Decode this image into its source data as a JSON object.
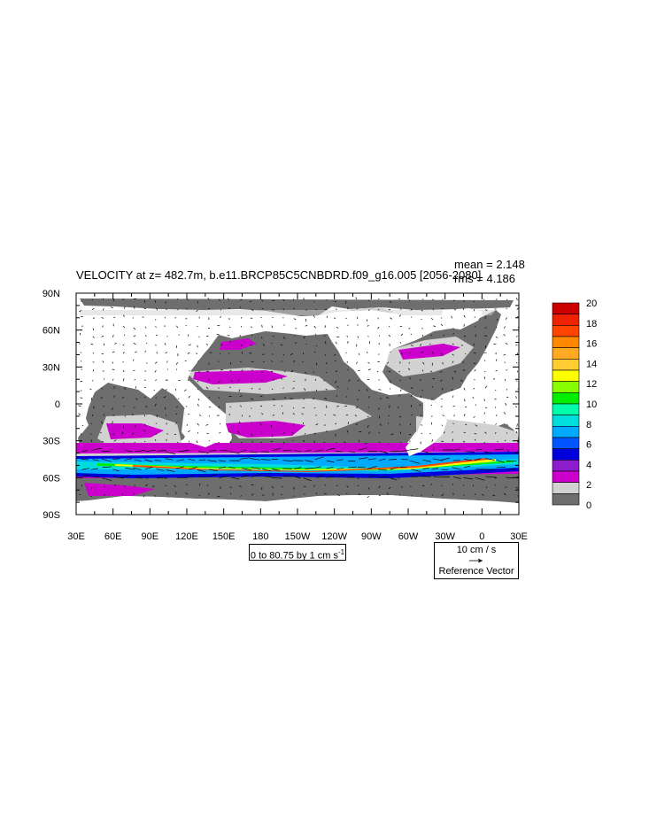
{
  "title": "VELOCITY at z= 482.7m, b.e11.BRCP85C5CNBDRD.f09_g16.005 [2056-2080]",
  "stats": {
    "mean_label": "mean = 2.148",
    "rms_label": "rms = 4.186"
  },
  "contour_info": "0 to 80.75 by 1 cm s",
  "contour_info_sup": "-1",
  "reference_vector": {
    "magnitude_label": "10 cm / s",
    "label": "Reference Vector"
  },
  "chart_data": {
    "type": "heatmap",
    "title": "VELOCITY at z= 482.7m, b.e11.BRCP85C5CNBDRD.f09_g16.005 [2056-2080]",
    "x_ticks": [
      "30E",
      "60E",
      "90E",
      "120E",
      "150E",
      "180",
      "150W",
      "120W",
      "90W",
      "60W",
      "30W",
      "0",
      "30E"
    ],
    "y_ticks": [
      "90N",
      "60N",
      "30N",
      "0",
      "30S",
      "60S",
      "90S"
    ],
    "xlim_lon_east": [
      30,
      390
    ],
    "ylim_lat": [
      -90,
      90
    ],
    "colorbar": {
      "levels": [
        "0",
        "2",
        "4",
        "6",
        "8",
        "10",
        "12",
        "14",
        "16",
        "18",
        "20"
      ],
      "colors": [
        "#6e6e6e",
        "#d2d2d2",
        "#cc00cc",
        "#8c1ccc",
        "#0000dd",
        "#0055ff",
        "#00aaff",
        "#00dddd",
        "#00ffaa",
        "#00ee00",
        "#88ff00",
        "#ffff00",
        "#ffcc33",
        "#ffaa22",
        "#ff8800",
        "#ff4400",
        "#ee2200",
        "#cc0000"
      ],
      "units": "cm/s"
    },
    "land_color": "#ffffff",
    "mean": 2.148,
    "rms": 4.186,
    "contour_min": 0,
    "contour_max": 80.75,
    "contour_interval": 1,
    "reference_vector_cm_s": 10
  }
}
